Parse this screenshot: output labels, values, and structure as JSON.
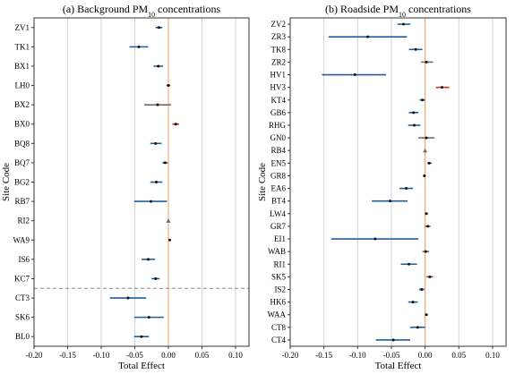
{
  "figure": {
    "y_axis_label": "Site Code",
    "x_axis_label": "Total Effect"
  },
  "chart_data": [
    {
      "type": "scatter",
      "subtype": "forest-plot",
      "title": "(a) Background PM10 concentrations",
      "title_prefix": "(a) Background PM",
      "title_subscript": "10",
      "title_suffix": " concentrations",
      "xlabel": "Total Effect",
      "ylabel": "Site Code",
      "xlim": [
        -0.2,
        0.12
      ],
      "xticks": [
        "-0.20",
        "-0.15",
        "-0.10",
        "-0.05",
        "0.00",
        "0.05",
        "0.10"
      ],
      "xtick_values": [
        -0.2,
        -0.15,
        -0.1,
        -0.05,
        0.0,
        0.05,
        0.1
      ],
      "grid": "vertical",
      "reference_line_x": 0,
      "divider_after_index": 13,
      "sites": [
        {
          "code": "ZV1",
          "est": -0.014,
          "low": -0.019,
          "high": -0.009,
          "color": "#1f5f9e"
        },
        {
          "code": "TK1",
          "est": -0.044,
          "low": -0.058,
          "high": -0.03,
          "color": "#1f5f9e"
        },
        {
          "code": "BX1",
          "est": -0.015,
          "low": -0.022,
          "high": -0.008,
          "color": "#1f5f9e"
        },
        {
          "code": "LH0",
          "est": 0.0,
          "low": -0.003,
          "high": 0.003,
          "color": "#c0392b"
        },
        {
          "code": "BX2",
          "est": -0.016,
          "low": -0.036,
          "high": 0.004,
          "color": "#6e6e6e"
        },
        {
          "code": "BX0",
          "est": 0.011,
          "low": 0.006,
          "high": 0.016,
          "color": "#c0392b"
        },
        {
          "code": "BQ8",
          "est": -0.019,
          "low": -0.027,
          "high": -0.01,
          "color": "#1f5f9e"
        },
        {
          "code": "BQ7",
          "est": -0.005,
          "low": -0.009,
          "high": -0.001,
          "color": "#1f5f9e"
        },
        {
          "code": "BG2",
          "est": -0.018,
          "low": -0.027,
          "high": -0.009,
          "color": "#1f5f9e"
        },
        {
          "code": "RB7",
          "est": -0.026,
          "low": -0.051,
          "high": -0.002,
          "color": "#1f5f9e"
        },
        {
          "code": "RI2",
          "est": 0.0,
          "low": 0.0,
          "high": 0.0,
          "color": "#6e6e6e",
          "marker": "triangle"
        },
        {
          "code": "WA9",
          "est": 0.002,
          "low": 0.0,
          "high": 0.004,
          "color": "#c0392b"
        },
        {
          "code": "IS6",
          "est": -0.03,
          "low": -0.04,
          "high": -0.02,
          "color": "#1f5f9e"
        },
        {
          "code": "KC7",
          "est": -0.019,
          "low": -0.025,
          "high": -0.013,
          "color": "#1f5f9e"
        },
        {
          "code": "CT3",
          "est": -0.06,
          "low": -0.087,
          "high": -0.033,
          "color": "#1f5f9e"
        },
        {
          "code": "SK6",
          "est": -0.029,
          "low": -0.051,
          "high": -0.007,
          "color": "#1f5f9e"
        },
        {
          "code": "BL0",
          "est": -0.04,
          "low": -0.051,
          "high": -0.029,
          "color": "#1f5f9e"
        }
      ]
    },
    {
      "type": "scatter",
      "subtype": "forest-plot",
      "title": "(b) Roadside PM10 concentrations",
      "title_prefix": "(b) Roadside PM",
      "title_subscript": "10",
      "title_suffix": " concentrations",
      "xlabel": "Total Effect",
      "ylabel": "Site Code",
      "xlim": [
        -0.2,
        0.12
      ],
      "xticks": [
        "-0.20",
        "-0.15",
        "-0.10",
        "-0.05",
        "0.00",
        "0.05",
        "0.10"
      ],
      "xtick_values": [
        -0.2,
        -0.15,
        -0.1,
        -0.05,
        0.0,
        0.05,
        0.1
      ],
      "grid": "vertical",
      "reference_line_x": 0,
      "divider_after_index": 25,
      "sites": [
        {
          "code": "ZV2",
          "est": -0.032,
          "low": -0.041,
          "high": -0.022,
          "color": "#1f5f9e"
        },
        {
          "code": "ZR3",
          "est": -0.085,
          "low": -0.143,
          "high": -0.027,
          "color": "#1f5f9e"
        },
        {
          "code": "TK8",
          "est": -0.014,
          "low": -0.024,
          "high": -0.004,
          "color": "#1f5f9e"
        },
        {
          "code": "ZR2",
          "est": 0.002,
          "low": -0.006,
          "high": 0.012,
          "color": "#6e6e6e"
        },
        {
          "code": "HV1",
          "est": -0.104,
          "low": -0.153,
          "high": -0.058,
          "color": "#1f5f9e"
        },
        {
          "code": "HV3",
          "est": 0.025,
          "low": 0.016,
          "high": 0.036,
          "color": "#c0392b"
        },
        {
          "code": "KT4",
          "est": -0.004,
          "low": -0.008,
          "high": 0.0,
          "color": "#1f5f9e"
        },
        {
          "code": "GB6",
          "est": -0.017,
          "low": -0.024,
          "high": -0.01,
          "color": "#1f5f9e"
        },
        {
          "code": "RHG",
          "est": -0.016,
          "low": -0.025,
          "high": -0.007,
          "color": "#1f5f9e"
        },
        {
          "code": "GN0",
          "est": 0.002,
          "low": -0.01,
          "high": 0.014,
          "color": "#6e6e6e"
        },
        {
          "code": "RB4",
          "est": 0.0,
          "low": 0.0,
          "high": 0.0,
          "color": "#6e6e6e",
          "marker": "triangle"
        },
        {
          "code": "EN5",
          "est": 0.006,
          "low": 0.003,
          "high": 0.01,
          "color": "#c0392b"
        },
        {
          "code": "GR8",
          "est": -0.001,
          "low": -0.003,
          "high": 0.001,
          "color": "#1f5f9e"
        },
        {
          "code": "EA6",
          "est": -0.028,
          "low": -0.038,
          "high": -0.018,
          "color": "#1f5f9e"
        },
        {
          "code": "BT4",
          "est": -0.052,
          "low": -0.079,
          "high": -0.026,
          "color": "#1f5f9e"
        },
        {
          "code": "LW4",
          "est": 0.002,
          "low": 0.0,
          "high": 0.004,
          "color": "#c0392b"
        },
        {
          "code": "GR7",
          "est": 0.004,
          "low": 0.0,
          "high": 0.008,
          "color": "#c0392b"
        },
        {
          "code": "EI1",
          "est": -0.074,
          "low": -0.139,
          "high": -0.01,
          "color": "#1f5f9e"
        },
        {
          "code": "WAB",
          "est": 0.001,
          "low": -0.004,
          "high": 0.006,
          "color": "#6e6e6e"
        },
        {
          "code": "RI1",
          "est": -0.024,
          "low": -0.036,
          "high": -0.012,
          "color": "#1f5f9e"
        },
        {
          "code": "SK5",
          "est": 0.007,
          "low": 0.002,
          "high": 0.012,
          "color": "#c0392b"
        },
        {
          "code": "IS2",
          "est": -0.005,
          "low": -0.009,
          "high": -0.001,
          "color": "#1f5f9e"
        },
        {
          "code": "HK6",
          "est": -0.018,
          "low": -0.025,
          "high": -0.011,
          "color": "#1f5f9e"
        },
        {
          "code": "WAA",
          "est": 0.002,
          "low": 0.0,
          "high": 0.004,
          "color": "#c0392b"
        },
        {
          "code": "CT8",
          "est": -0.011,
          "low": -0.022,
          "high": 0.0,
          "color": "#1f5f9e"
        },
        {
          "code": "CT4",
          "est": -0.047,
          "low": -0.073,
          "high": -0.022,
          "color": "#1f5f9e"
        }
      ]
    }
  ]
}
